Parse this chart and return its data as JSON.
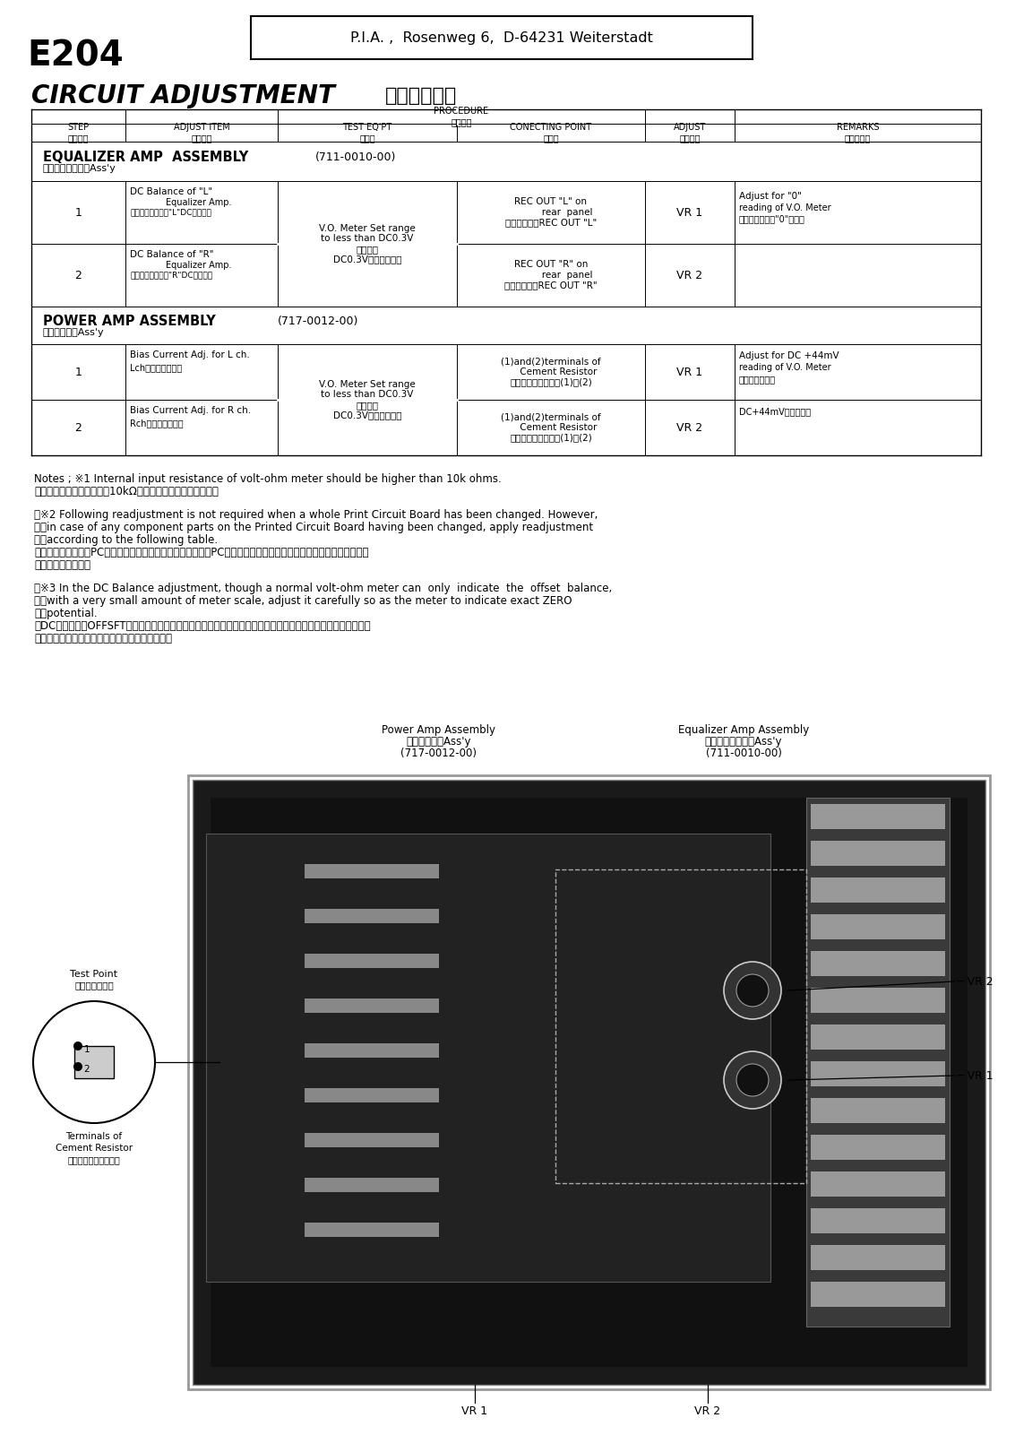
{
  "bg_color": "#ffffff",
  "title_main": "CIRCUIT ADJUSTMENT",
  "title_japanese": "（回路調整）",
  "header_box": "P.I.A. ,  Rosenweg 6,  D-64231 Weiterstadt",
  "model": "E204",
  "eq_section_title": "EQUALIZER AMP  ASSEMBLY",
  "eq_section_num": "(711-0010-00)",
  "eq_section_jp": "イコライザアンプAss'y",
  "pwr_section_title": "POWER AMP ASSEMBLY",
  "pwr_section_num": "(717-0012-00)",
  "pwr_section_jp": "パワーアンプAss'y",
  "note1_en": "Notes ; ※1 Internal input resistance of volt-ohm meter should be higher than 10k ohms.",
  "note1_jp": "　　テスターは、入力抵抗10kΩ以上のものをお使い下さい。",
  "note2_line1": "　※2 Following readjustment is not required when a whole Print Circuit Board has been changed. However,",
  "note2_line2": "　　in case of any component parts on the Printed Circuit Board having been changed, apply readjustment",
  "note2_line3": "　　according to the following table.",
  "note2_jp1": "　次の調整は、通常PCボードを交換した場合は不要ですが、PCボードの部品を交換した場合は、次表に従って調整",
  "note2_jp2": "　を行って下さい。",
  "note3_line1": "　※3 In the DC Balance adjustment, though a normal volt-ohm meter can  only  indicate  the  offset  balance,",
  "note3_line2": "　　with a very small amount of meter scale, adjust it carefully so as the meter to indicate exact ZERO",
  "note3_line3": "　　potential.",
  "note3_jp1": "　DCバランス（OFFSFT）調整は、テスターで見た場合は微小な範囲でしか動きませんので、注意してテスター",
  "note3_jp2": "　の指針が全く動かない程度に調整して下さい。",
  "img_label_pwr_en": "Power Amp Assembly",
  "img_label_pwr_jp": "パワーアンプAss'y",
  "img_label_pwr_num": "(717-0012-00)",
  "img_label_eq_en": "Equalizer Amp Assembly",
  "img_label_eq_jp": "イコライザアンプAss'y",
  "img_label_eq_num": "(711-0010-00)",
  "img_label_vr1_bot": "VR 1",
  "img_label_vr2_bot": "VR 2",
  "img_label_vr1_right": "VR 1",
  "img_label_vr2_right": "VR 2",
  "img_label_testpoint_en": "Test Point",
  "img_label_testpoint_jp": "テストポイント",
  "img_label_cement_en": "Terminals of",
  "img_label_cement_en2": "Cement Resistor",
  "img_label_cement_jp": "セメント抵抗の両端子"
}
